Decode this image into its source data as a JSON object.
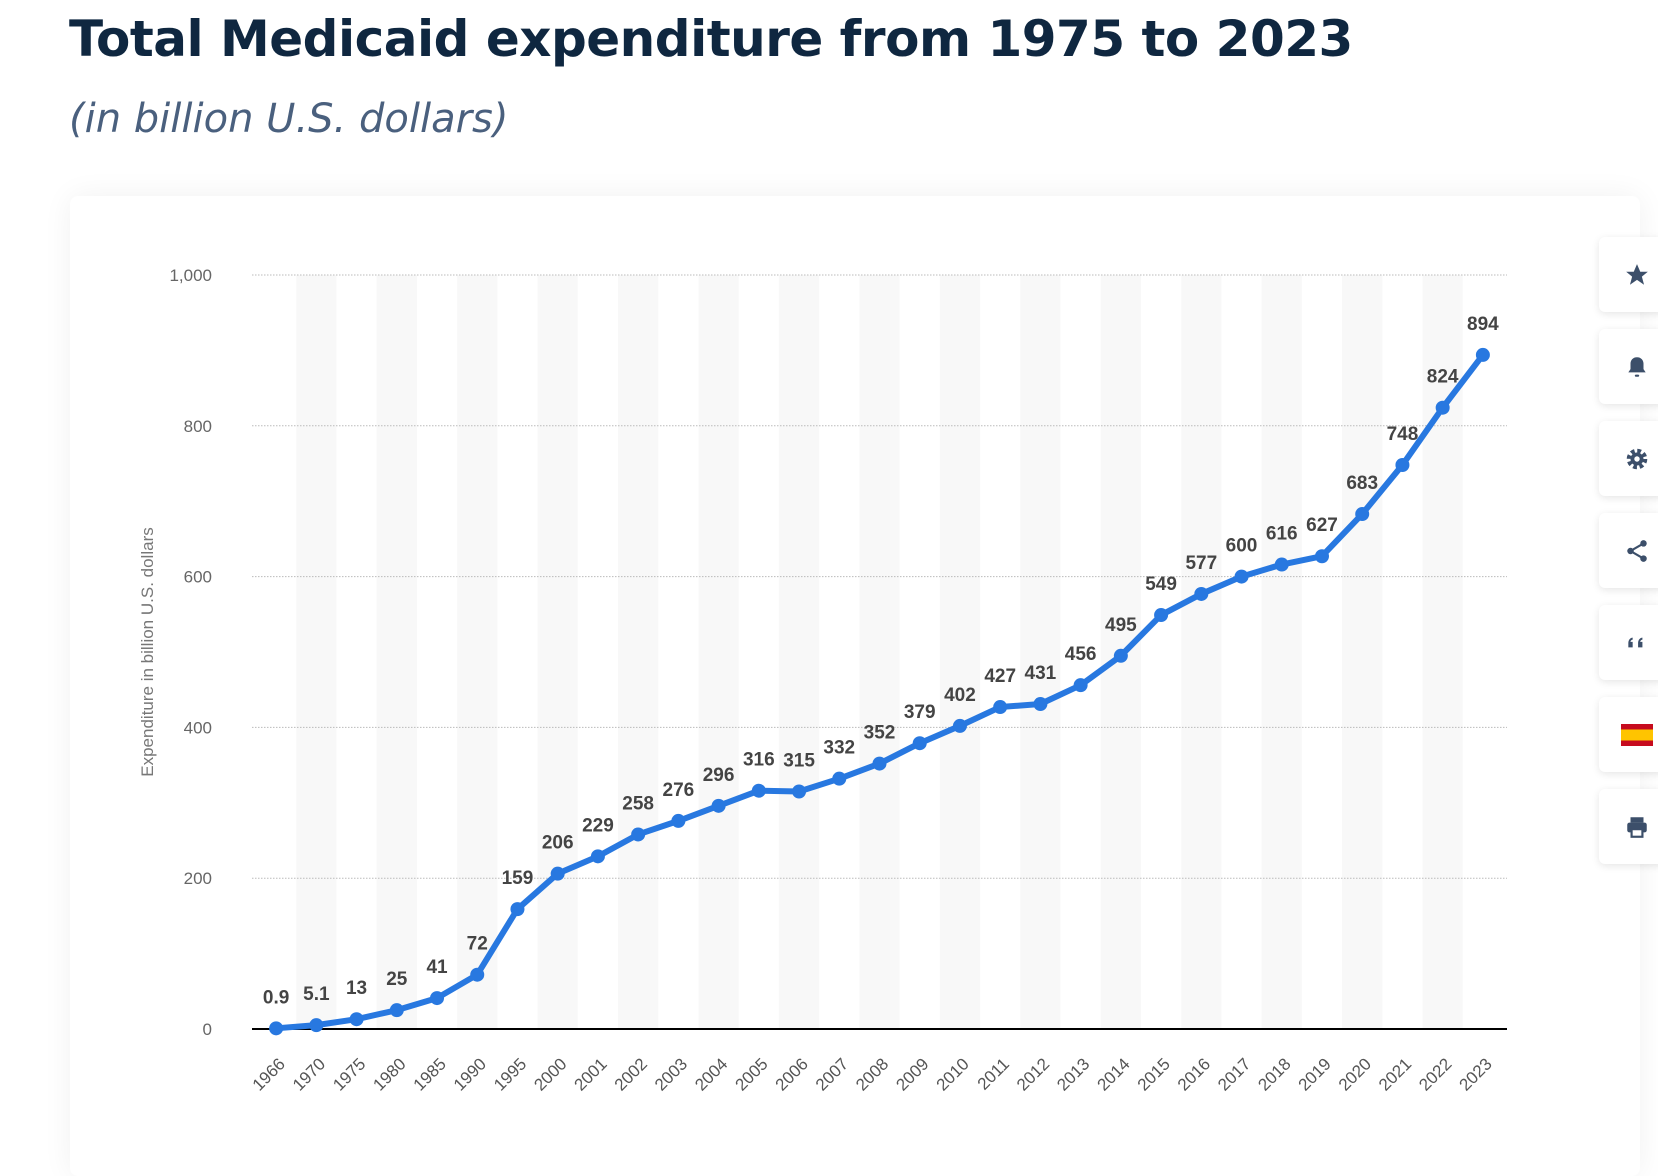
{
  "title": "Total Medicaid expenditure from 1975 to 2023",
  "subtitle": "(in billion U.S. dollars)",
  "toolbar": {
    "icons": [
      "star-icon",
      "bell-icon",
      "gear-icon",
      "share-icon",
      "quote-icon",
      "spain-flag-icon",
      "print-icon"
    ]
  },
  "chart_data": {
    "type": "line",
    "ylabel": "Expenditure in billion U.S. dollars",
    "xlabel": "",
    "ylim": [
      0,
      1000
    ],
    "yticks": [
      0,
      200,
      400,
      600,
      800,
      1000
    ],
    "ytick_labels": [
      "0",
      "200",
      "400",
      "600",
      "800",
      "1,000"
    ],
    "grid": "horizontal dotted",
    "color": "#2878e0",
    "categories": [
      "1966",
      "1970",
      "1975",
      "1980",
      "1985",
      "1990",
      "1995",
      "2000",
      "2001",
      "2002",
      "2003",
      "2004",
      "2005",
      "2006",
      "2007",
      "2008",
      "2009",
      "2010",
      "2011",
      "2012",
      "2013",
      "2014",
      "2015",
      "2016",
      "2017",
      "2018",
      "2019",
      "2020",
      "2021",
      "2022",
      "2023"
    ],
    "values": [
      0.9,
      5.1,
      13,
      25,
      41,
      72,
      159,
      206,
      229,
      258,
      276,
      296,
      316,
      315,
      332,
      352,
      379,
      402,
      427,
      431,
      456,
      495,
      549,
      577,
      600,
      616,
      627,
      683,
      748,
      824,
      894
    ],
    "data_labels": [
      "0.9",
      "5.1",
      "13",
      "25",
      "41",
      "72",
      "159",
      "206",
      "229",
      "258",
      "276",
      "296",
      "316",
      "315",
      "332",
      "352",
      "379",
      "402",
      "427",
      "431",
      "456",
      "495",
      "549",
      "577",
      "600",
      "616",
      "627",
      "683",
      "748",
      "824",
      "894"
    ]
  }
}
